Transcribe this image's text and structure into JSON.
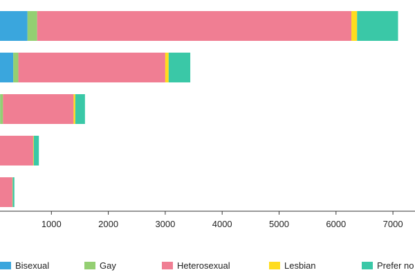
{
  "chart_data": {
    "type": "bar",
    "orientation": "horizontal",
    "stacked": true,
    "categories": [
      "",
      "",
      "",
      "",
      ""
    ],
    "series": [
      {
        "name": "Bisexual",
        "color": "#3aa6dd",
        "values": [
          580,
          330,
          100,
          20,
          5
        ]
      },
      {
        "name": "Gay",
        "color": "#94cf72",
        "values": [
          170,
          90,
          50,
          20,
          10
        ]
      },
      {
        "name": "Heterosexual",
        "color": "#f07e93",
        "values": [
          5520,
          2580,
          1240,
          640,
          300
        ]
      },
      {
        "name": "Lesbian",
        "color": "#ffdc1e",
        "values": [
          100,
          60,
          30,
          10,
          5
        ]
      },
      {
        "name": "Prefer no",
        "color": "#3ac8a7",
        "values": [
          720,
          380,
          170,
          90,
          30
        ]
      }
    ],
    "x_ticks": [
      "1000",
      "2000",
      "3000",
      "4000",
      "5000",
      "6000",
      "7000"
    ],
    "x_tick_values": [
      1000,
      2000,
      3000,
      4000,
      5000,
      6000,
      7000
    ],
    "xlim": [
      0,
      7300
    ],
    "title": "",
    "xlabel": "",
    "ylabel": "",
    "grid": false,
    "legend_position": "bottom"
  }
}
